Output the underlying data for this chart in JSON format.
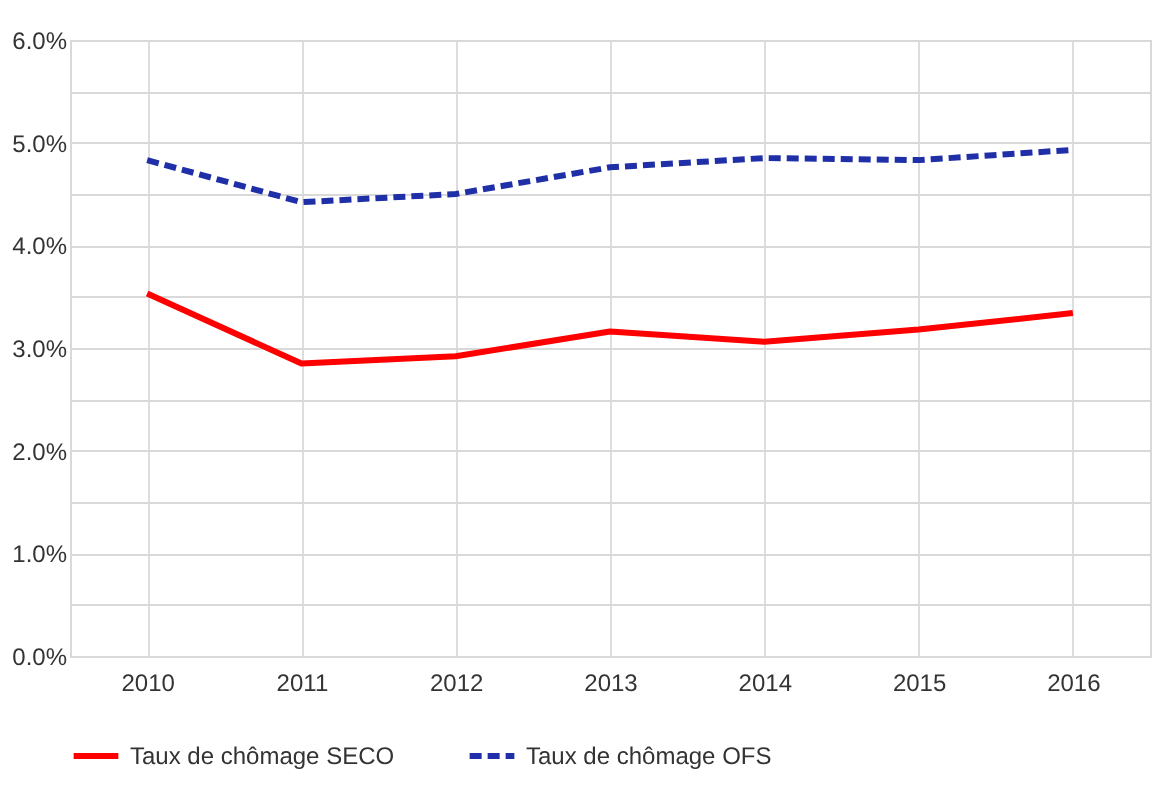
{
  "chart_data": {
    "type": "line",
    "categories": [
      "2010",
      "2011",
      "2012",
      "2013",
      "2014",
      "2015",
      "2016"
    ],
    "series": [
      {
        "name": "Taux de chômage SECO",
        "color": "#ff0000",
        "line_style": "solid",
        "values": [
          3.53,
          2.85,
          2.92,
          3.16,
          3.06,
          3.18,
          3.34
        ]
      },
      {
        "name": "Taux de chômage OFS",
        "color": "#1f2fa8",
        "line_style": "dashed",
        "values": [
          4.83,
          4.42,
          4.5,
          4.76,
          4.85,
          4.83,
          4.93
        ]
      }
    ],
    "ylim": [
      0,
      6
    ],
    "yticks": [
      {
        "value": 0,
        "label": "0.0%"
      },
      {
        "value": 0.5,
        "label": null
      },
      {
        "value": 1,
        "label": "1.0%"
      },
      {
        "value": 1.5,
        "label": null
      },
      {
        "value": 2,
        "label": "2.0%"
      },
      {
        "value": 2.5,
        "label": null
      },
      {
        "value": 3,
        "label": "3.0%"
      },
      {
        "value": 3.5,
        "label": null
      },
      {
        "value": 4,
        "label": "4.0%"
      },
      {
        "value": 4.5,
        "label": null
      },
      {
        "value": 5,
        "label": "5.0%"
      },
      {
        "value": 5.5,
        "label": null
      },
      {
        "value": 6,
        "label": "6.0%"
      }
    ],
    "grid": true,
    "legend": "bottom",
    "marker": "none"
  }
}
